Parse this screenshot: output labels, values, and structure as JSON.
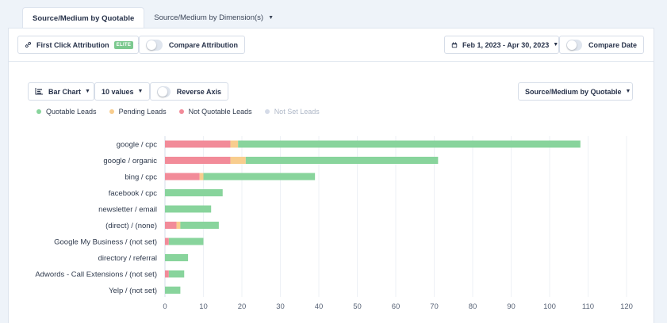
{
  "tabs": [
    {
      "label": "Source/Medium by Quotable"
    },
    {
      "label": "Source/Medium by Dimension(s)"
    }
  ],
  "toolbar": {
    "attribution_label": "First Click Attribution",
    "attribution_badge": "ELITE",
    "compare_attribution_label": "Compare Attribution",
    "date_range": "Feb 1, 2023 - Apr 30, 2023",
    "compare_date_label": "Compare Date"
  },
  "chart_controls": {
    "chart_type": "Bar Chart",
    "values_count": "10 values",
    "reverse_axis_label": "Reverse Axis",
    "report_select": "Source/Medium by Quotable"
  },
  "legend": [
    {
      "label": "Quotable Leads",
      "color": "#88d49c"
    },
    {
      "label": "Pending Leads",
      "color": "#f8cd8e"
    },
    {
      "label": "Not Quotable Leads",
      "color": "#f28b99"
    },
    {
      "label": "Not Set Leads",
      "color": "#d5dbe8",
      "dim": true
    }
  ],
  "chart_data": {
    "type": "bar",
    "orientation": "horizontal",
    "stacked": true,
    "categories": [
      "google / cpc",
      "google / organic",
      "bing / cpc",
      "facebook / cpc",
      "newsletter / email",
      "(direct) / (none)",
      "Google My Business / (not set)",
      "directory / referral",
      "Adwords - Call Extensions / (not set)",
      "Yelp / (not set)"
    ],
    "series": [
      {
        "name": "Not Quotable Leads",
        "color": "#f28b99",
        "values": [
          17,
          17,
          9,
          0,
          0,
          3,
          1,
          0,
          1,
          0
        ]
      },
      {
        "name": "Pending Leads",
        "color": "#f8cd8e",
        "values": [
          2,
          4,
          1,
          0,
          0,
          1,
          0,
          0,
          0,
          0
        ]
      },
      {
        "name": "Quotable Leads",
        "color": "#88d49c",
        "values": [
          89,
          50,
          29,
          15,
          12,
          10,
          9,
          6,
          4,
          4
        ]
      },
      {
        "name": "Not Set Leads",
        "color": "#d5dbe8",
        "values": [
          0,
          0,
          0,
          0,
          0,
          0,
          0,
          0,
          0,
          0
        ]
      }
    ],
    "xlim": [
      0,
      120
    ],
    "xticks": [
      0,
      10,
      20,
      30,
      40,
      50,
      60,
      70,
      80,
      90,
      100,
      110,
      120
    ],
    "grid": true,
    "legend_position": "top-left"
  }
}
